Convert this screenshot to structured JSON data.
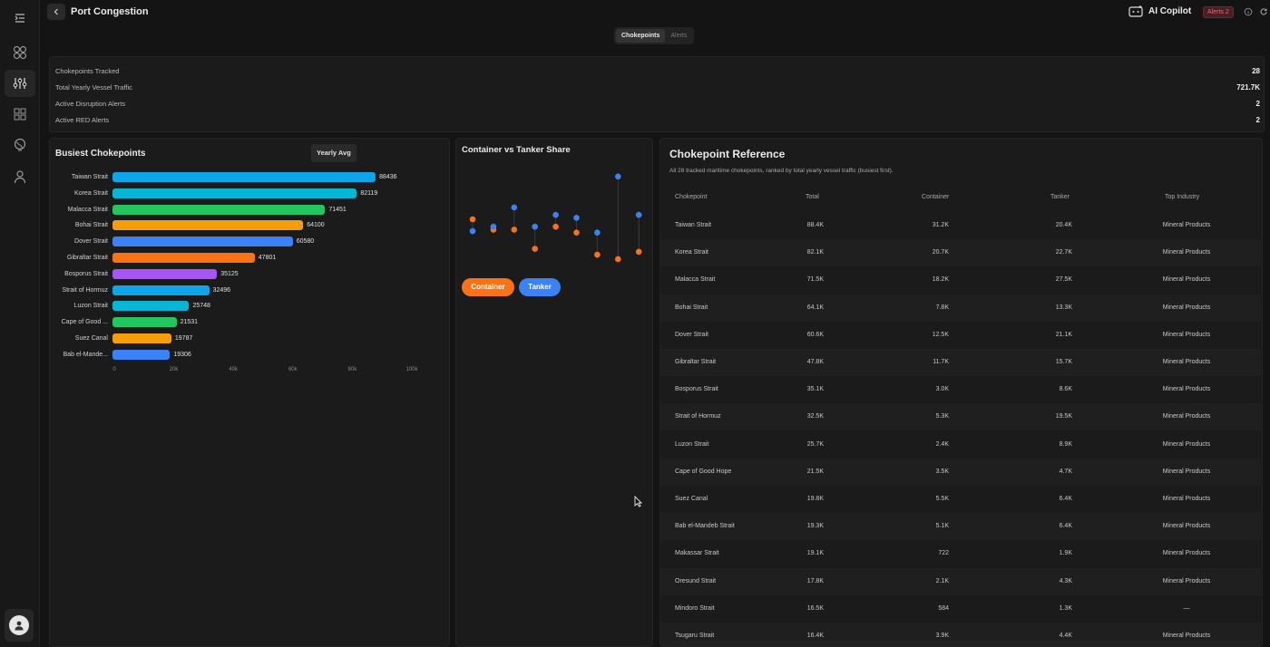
{
  "header": {
    "title": "Port Congestion",
    "copilot_label": "AI Copilot",
    "alerts_badge": "Alerts 2"
  },
  "tabs": [
    {
      "label": "Chokepoints",
      "active": true
    },
    {
      "label": "Alerts",
      "active": false
    }
  ],
  "stats": [
    {
      "label": "Chokepoints Tracked",
      "value": "28"
    },
    {
      "label": "Total Yearly Vessel Traffic",
      "value": "721.7K"
    },
    {
      "label": "Active Disruption Alerts",
      "value": "2"
    },
    {
      "label": "Active RED Alerts",
      "value": "2"
    }
  ],
  "busiest": {
    "title": "Busiest Chokepoints",
    "filter_label": "Yearly Avg",
    "chart_data": {
      "type": "bar",
      "orientation": "horizontal",
      "categories": [
        "Taiwan Strait",
        "Korea Strait",
        "Malacca Strait",
        "Bohai Strait",
        "Dover Strait",
        "Gibraltar Strait",
        "Bosporus Strait",
        "Strait of Hormuz",
        "Luzon Strait",
        "Cape of Good ...",
        "Suez Canal",
        "Bab el-Mande..."
      ],
      "values": [
        88436,
        82119,
        71451,
        64100,
        60580,
        47801,
        35125,
        32496,
        25748,
        21531,
        19787,
        19306
      ],
      "value_labels": [
        "88436",
        "82119",
        "71451",
        "64100",
        "60580",
        "47801",
        "35125",
        "32496",
        "25748",
        "21531",
        "19787",
        "19306"
      ],
      "colors": [
        "#0ea5e9",
        "#06b6d4",
        "#22c55e",
        "#f59e0b",
        "#3b82f6",
        "#f97316",
        "#a855f7",
        "#0ea5e9",
        "#06b6d4",
        "#22c55e",
        "#f59e0b",
        "#3b82f6"
      ],
      "xlim": [
        0,
        100000
      ],
      "x_ticks": [
        "0",
        "20k",
        "40k",
        "60k",
        "80k",
        "100k"
      ],
      "grid": false
    }
  },
  "share": {
    "title": "Container vs Tanker Share",
    "chart_data": {
      "type": "scatter",
      "series": [
        {
          "name": "Container",
          "color": "#f97316",
          "values": [
            65,
            58,
            58,
            45,
            60,
            56,
            41,
            38,
            43,
            33
          ]
        },
        {
          "name": "Tanker",
          "color": "#3b82f6",
          "values": [
            57,
            60,
            73,
            60,
            68,
            66,
            56,
            94,
            68,
            70
          ]
        }
      ],
      "ylim": [
        30,
        100
      ],
      "grid": false,
      "legend": "bottom-left"
    },
    "legend": [
      "Container",
      "Tanker"
    ]
  },
  "reference": {
    "title": "Chokepoint Reference",
    "subtitle": "All 28 tracked maritime chokepoints, ranked by total yearly vessel traffic (busiest first).",
    "columns": [
      "Chokepoint",
      "Total",
      "Container",
      "Tanker",
      "Top Industry"
    ],
    "rows": [
      [
        "Taiwan Strait",
        "88.4K",
        "31.2K",
        "20.4K",
        "Mineral Products"
      ],
      [
        "Korea Strait",
        "82.1K",
        "20.7K",
        "22.7K",
        "Mineral Products"
      ],
      [
        "Malacca Strait",
        "71.5K",
        "18.2K",
        "27.5K",
        "Mineral Products"
      ],
      [
        "Bohai Strait",
        "64.1K",
        "7.8K",
        "13.3K",
        "Mineral Products"
      ],
      [
        "Dover Strait",
        "60.6K",
        "12.5K",
        "21.1K",
        "Mineral Products"
      ],
      [
        "Gibraltar Strait",
        "47.8K",
        "11.7K",
        "15.7K",
        "Mineral Products"
      ],
      [
        "Bosporus Strait",
        "35.1K",
        "3.0K",
        "8.6K",
        "Mineral Products"
      ],
      [
        "Strait of Hormuz",
        "32.5K",
        "5.3K",
        "19.5K",
        "Mineral Products"
      ],
      [
        "Luzon Strait",
        "25.7K",
        "2.4K",
        "8.9K",
        "Mineral Products"
      ],
      [
        "Cape of Good Hope",
        "21.5K",
        "3.5K",
        "4.7K",
        "Mineral Products"
      ],
      [
        "Suez Canal",
        "19.8K",
        "5.5K",
        "6.4K",
        "Mineral Products"
      ],
      [
        "Bab el-Mandeb Strait",
        "19.3K",
        "5.1K",
        "6.4K",
        "Mineral Products"
      ],
      [
        "Makassar Strait",
        "19.1K",
        "722",
        "1.9K",
        "Mineral Products"
      ],
      [
        "Oresund Strait",
        "17.8K",
        "2.1K",
        "4.3K",
        "Mineral Products"
      ],
      [
        "Mindoro Strait",
        "16.5K",
        "584",
        "1.3K",
        "—"
      ],
      [
        "Tsugaru Strait",
        "16.4K",
        "3.9K",
        "4.4K",
        "Mineral Products"
      ]
    ]
  },
  "icons": {
    "sidebar": [
      "menu-collapse-icon",
      "dashboard-icon",
      "analytics-icon",
      "grid-icon",
      "globe-icon",
      "user-icon"
    ],
    "header": [
      "back-chevron-icon",
      "copilot-icon",
      "info-icon",
      "refresh-icon"
    ]
  },
  "colors": {
    "background": "#141414",
    "panel": "#1b1b1b",
    "alert": "#e06a77"
  }
}
